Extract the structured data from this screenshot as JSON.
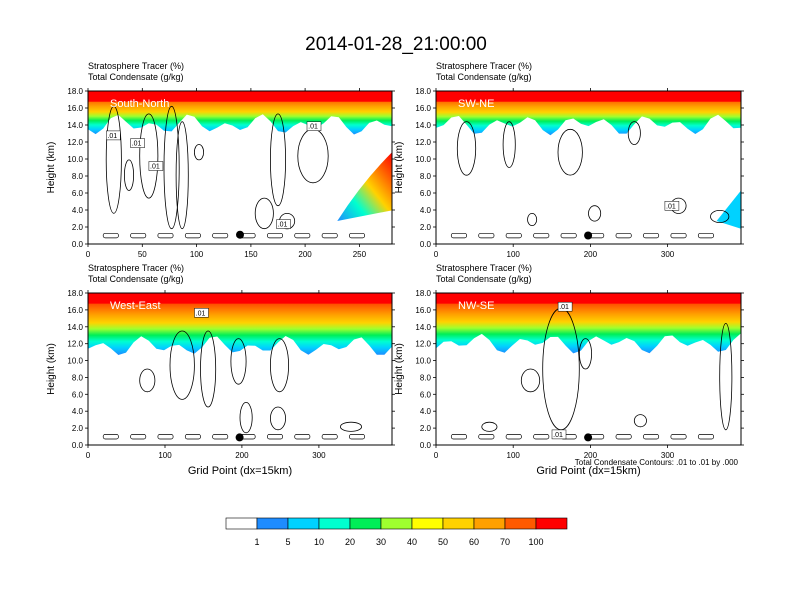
{
  "title": "2014-01-28_21:00:00",
  "panel_label_1": "Stratosphere Tracer   (%)",
  "panel_label_2": "Total Condensate   (g/kg)",
  "footnote": "Total Condensate Contours: .01 to .01 by .000",
  "colorbar": {
    "labels": [
      "1",
      "5",
      "10",
      "20",
      "30",
      "40",
      "50",
      "60",
      "70",
      "100"
    ],
    "colors": [
      "#ffffff",
      "#1e8cff",
      "#00d2ff",
      "#00ffcf",
      "#00ee57",
      "#9fff2f",
      "#ffff00",
      "#ffd200",
      "#ffa000",
      "#ff5a00",
      "#ff0000"
    ]
  },
  "chart_data": [
    {
      "type": "heatmap",
      "name": "South-North",
      "ylabel": "Height (km)",
      "xlabel": "",
      "xlim": [
        0,
        280
      ],
      "ylim": [
        0,
        18
      ],
      "xticks": [
        "0",
        "50",
        "100",
        "150",
        "200",
        "250"
      ],
      "yticks": [
        "0.0",
        "2.0",
        "4.0",
        "6.0",
        "8.0",
        "10.0",
        "12.0",
        "14.0",
        "16.0",
        "18.0"
      ],
      "contour_labels": [
        ".01",
        ".01",
        ".01",
        ".01",
        ".01"
      ],
      "marker": {
        "x": 140,
        "y": 1.1
      }
    },
    {
      "type": "heatmap",
      "name": "SW-NE",
      "ylabel": "Height (km)",
      "xlabel": "",
      "xlim": [
        0,
        395
      ],
      "ylim": [
        0,
        18
      ],
      "xticks": [
        "0",
        "100",
        "200",
        "300"
      ],
      "yticks": [
        "0.0",
        "2.0",
        "4.0",
        "6.0",
        "8.0",
        "10.0",
        "12.0",
        "14.0",
        "16.0",
        "18.0"
      ],
      "contour_labels": [
        ".01"
      ],
      "marker": {
        "x": 197,
        "y": 1.0
      }
    },
    {
      "type": "heatmap",
      "name": "West-East",
      "ylabel": "Height (km)",
      "xlabel": "Grid Point (dx=15km)",
      "xlim": [
        0,
        395
      ],
      "ylim": [
        0,
        18
      ],
      "xticks": [
        "0",
        "100",
        "200",
        "300"
      ],
      "yticks": [
        "0.0",
        "2.0",
        "4.0",
        "6.0",
        "8.0",
        "10.0",
        "12.0",
        "14.0",
        "16.0",
        "18.0"
      ],
      "contour_labels": [
        ".01"
      ],
      "marker": {
        "x": 197,
        "y": 0.9
      }
    },
    {
      "type": "heatmap",
      "name": "NW-SE",
      "ylabel": "Height (km)",
      "xlabel": "Grid Point (dx=15km)",
      "xlim": [
        0,
        395
      ],
      "ylim": [
        0,
        18
      ],
      "xticks": [
        "0",
        "100",
        "200",
        "300"
      ],
      "yticks": [
        "0.0",
        "2.0",
        "4.0",
        "6.0",
        "8.0",
        "10.0",
        "12.0",
        "14.0",
        "16.0",
        "18.0"
      ],
      "contour_labels": [
        ".01",
        ".01"
      ],
      "marker": {
        "x": 197,
        "y": 0.9
      }
    }
  ]
}
